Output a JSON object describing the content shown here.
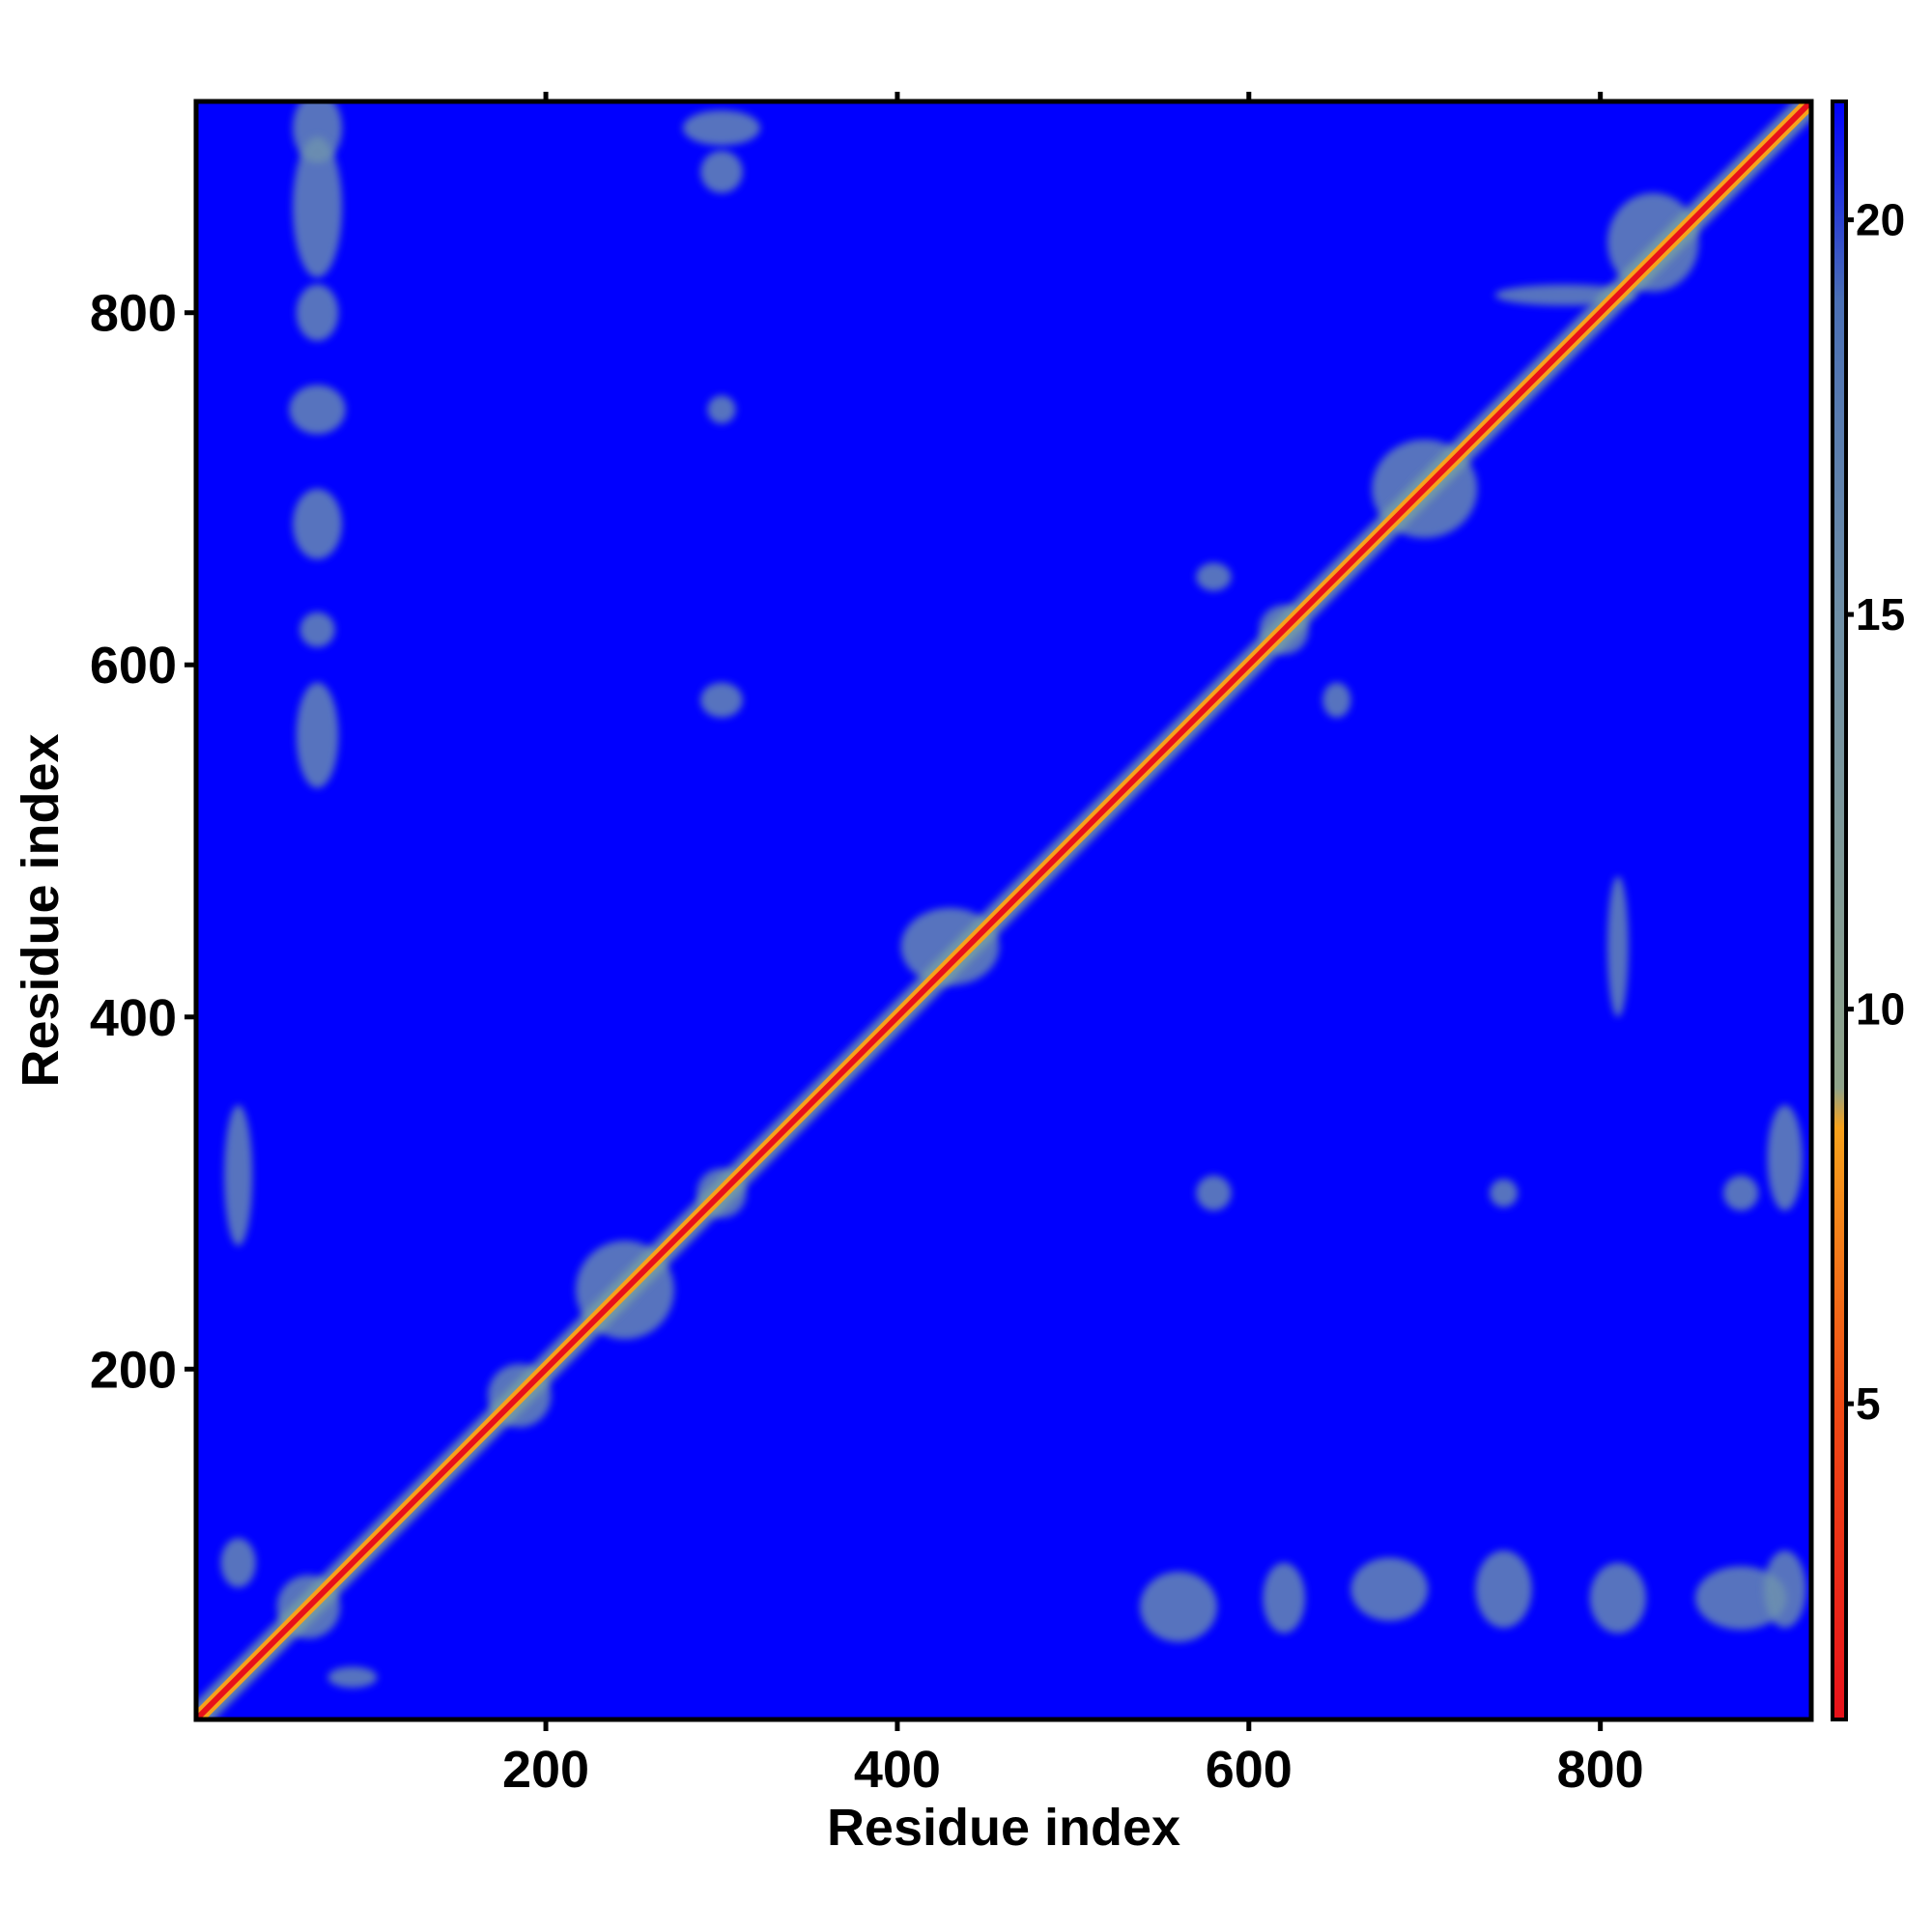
{
  "chart_data": {
    "type": "heatmap",
    "title": "",
    "xlabel": "Residue index",
    "ylabel": "Residue index",
    "xlim": [
      1,
      920
    ],
    "ylim": [
      1,
      920
    ],
    "x_ticks": [
      200,
      400,
      600,
      800
    ],
    "y_ticks": [
      200,
      400,
      600,
      800
    ],
    "diagonal": [
      [
        1,
        1
      ],
      [
        920,
        920
      ]
    ],
    "colorbar": {
      "range": [
        1,
        21.5
      ],
      "ticks": [
        5,
        10,
        15,
        20
      ],
      "stops": [
        {
          "value": 1,
          "color": "#e8111a"
        },
        {
          "value": 5,
          "color": "#f04a14"
        },
        {
          "value": 8.5,
          "color": "#f7a21b"
        },
        {
          "value": 9,
          "color": "#8fa38a"
        },
        {
          "value": 15,
          "color": "#6f8fa6"
        },
        {
          "value": 19,
          "color": "#4a6fb5"
        },
        {
          "value": 21.5,
          "color": "#0000ff"
        }
      ]
    },
    "background_color": "#0000ff",
    "contact_color": "#6f94ad",
    "near_diagonal_color": "#7aa5a0",
    "contact_clusters": [
      {
        "x": 70,
        "y": 905,
        "rx": 14,
        "ry": 20
      },
      {
        "x": 70,
        "y": 860,
        "rx": 14,
        "ry": 40
      },
      {
        "x": 70,
        "y": 800,
        "rx": 12,
        "ry": 16
      },
      {
        "x": 70,
        "y": 745,
        "rx": 16,
        "ry": 14
      },
      {
        "x": 70,
        "y": 680,
        "rx": 14,
        "ry": 20
      },
      {
        "x": 70,
        "y": 620,
        "rx": 10,
        "ry": 10
      },
      {
        "x": 70,
        "y": 560,
        "rx": 12,
        "ry": 30
      },
      {
        "x": 300,
        "y": 880,
        "rx": 12,
        "ry": 12
      },
      {
        "x": 300,
        "y": 905,
        "rx": 22,
        "ry": 10
      },
      {
        "x": 300,
        "y": 745,
        "rx": 8,
        "ry": 8
      },
      {
        "x": 300,
        "y": 580,
        "rx": 12,
        "ry": 10
      },
      {
        "x": 580,
        "y": 650,
        "rx": 10,
        "ry": 8
      },
      {
        "x": 650,
        "y": 580,
        "rx": 8,
        "ry": 10
      },
      {
        "x": 780,
        "y": 810,
        "rx": 40,
        "ry": 6
      },
      {
        "x": 245,
        "y": 245,
        "rx": 28,
        "ry": 28
      },
      {
        "x": 185,
        "y": 185,
        "rx": 18,
        "ry": 18
      },
      {
        "x": 430,
        "y": 440,
        "rx": 28,
        "ry": 22
      },
      {
        "x": 700,
        "y": 700,
        "rx": 30,
        "ry": 28
      },
      {
        "x": 830,
        "y": 840,
        "rx": 26,
        "ry": 28
      },
      {
        "x": 620,
        "y": 620,
        "rx": 14,
        "ry": 14
      },
      {
        "x": 300,
        "y": 300,
        "rx": 14,
        "ry": 14
      },
      {
        "x": 65,
        "y": 65,
        "rx": 18,
        "ry": 18
      },
      {
        "x": 25,
        "y": 90,
        "rx": 10,
        "ry": 14
      },
      {
        "x": 90,
        "y": 25,
        "rx": 14,
        "ry": 6
      },
      {
        "x": 560,
        "y": 65,
        "rx": 22,
        "ry": 20
      },
      {
        "x": 620,
        "y": 70,
        "rx": 12,
        "ry": 20
      },
      {
        "x": 680,
        "y": 75,
        "rx": 22,
        "ry": 18
      },
      {
        "x": 745,
        "y": 75,
        "rx": 16,
        "ry": 22
      },
      {
        "x": 810,
        "y": 70,
        "rx": 16,
        "ry": 20
      },
      {
        "x": 880,
        "y": 70,
        "rx": 26,
        "ry": 18
      },
      {
        "x": 905,
        "y": 75,
        "rx": 12,
        "ry": 22
      },
      {
        "x": 810,
        "y": 440,
        "rx": 6,
        "ry": 40
      },
      {
        "x": 880,
        "y": 300,
        "rx": 10,
        "ry": 10
      },
      {
        "x": 745,
        "y": 300,
        "rx": 8,
        "ry": 8
      },
      {
        "x": 580,
        "y": 300,
        "rx": 10,
        "ry": 10
      },
      {
        "x": 905,
        "y": 320,
        "rx": 10,
        "ry": 30
      },
      {
        "x": 25,
        "y": 310,
        "rx": 8,
        "ry": 40
      }
    ]
  }
}
